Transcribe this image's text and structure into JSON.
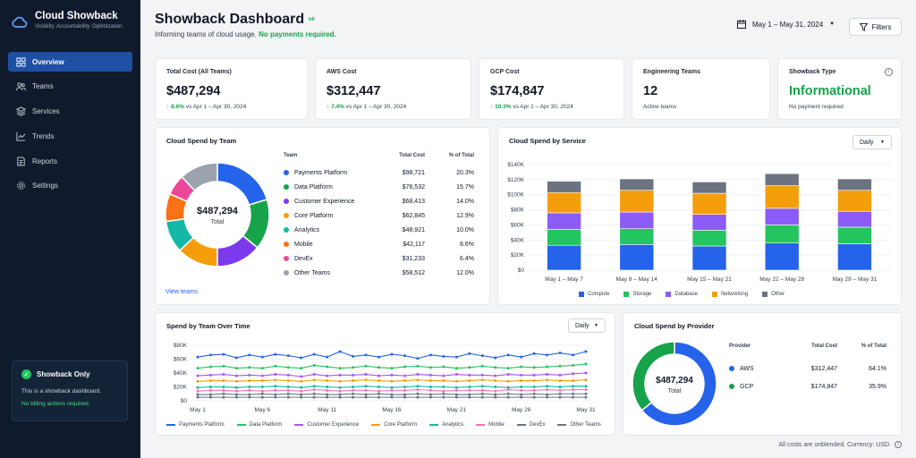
{
  "brand": {
    "title": "Cloud Showback",
    "subtitle": "Visibility. Accountability. Optimization."
  },
  "nav": [
    {
      "label": "Overview",
      "icon": "home-icon",
      "active": true
    },
    {
      "label": "Teams",
      "icon": "users-icon"
    },
    {
      "label": "Services",
      "icon": "layers-icon"
    },
    {
      "label": "Trends",
      "icon": "trend-icon"
    },
    {
      "label": "Reports",
      "icon": "report-icon"
    },
    {
      "label": "Settings",
      "icon": "gear-icon"
    }
  ],
  "promo": {
    "title": "Showback Only",
    "line1": "This is a showback dashboard.",
    "line2": "No billing actions required."
  },
  "header": {
    "title": "Showback Dashboard",
    "badge": "b9",
    "subtitle": "Informing teams of cloud usage.",
    "subtitle_strong": "No payments required.",
    "date_range": "May 1 – May 31, 2024",
    "filters": "Filters"
  },
  "kpis": [
    {
      "label": "Total Cost (All Teams)",
      "value": "$487,294",
      "change": "8.6%",
      "vs": "vs Apr 1 – Apr 30, 2024"
    },
    {
      "label": "AWS Cost",
      "value": "$312,447",
      "change": "7.4%",
      "vs": "vs Apr 1 – Apr 30, 2024"
    },
    {
      "label": "GCP Cost",
      "value": "$174,847",
      "change": "10.3%",
      "vs": "vs Apr 1 – Apr 30, 2024"
    },
    {
      "label": "Engineering Teams",
      "value": "12",
      "note": "Active teams"
    },
    {
      "label": "Showback Type",
      "value": "Informational",
      "note": "No payment required"
    }
  ],
  "team_spend": {
    "title": "Cloud Spend by Team",
    "center_value": "$487,294",
    "center_label": "Total",
    "headers": [
      "Team",
      "Total Cost",
      "% of Total"
    ],
    "rows": [
      {
        "team": "Payments Platform",
        "cost": "$98,721",
        "pct": "20.3%",
        "color": "#2563eb"
      },
      {
        "team": "Data Platform",
        "cost": "$76,532",
        "pct": "15.7%",
        "color": "#16a34a"
      },
      {
        "team": "Customer Experience",
        "cost": "$68,413",
        "pct": "14.0%",
        "color": "#7c3aed"
      },
      {
        "team": "Core Platform",
        "cost": "$62,845",
        "pct": "12.9%",
        "color": "#f59e0b"
      },
      {
        "team": "Analytics",
        "cost": "$48,921",
        "pct": "10.0%",
        "color": "#14b8a6"
      },
      {
        "team": "Mobile",
        "cost": "$42,117",
        "pct": "8.6%",
        "color": "#f97316"
      },
      {
        "team": "DevEx",
        "cost": "$31,233",
        "pct": "6.4%",
        "color": "#ec4899"
      },
      {
        "team": "Other Teams",
        "cost": "$58,512",
        "pct": "12.0%",
        "color": "#9ca3af"
      }
    ],
    "view_link": "View teams"
  },
  "chart_data": [
    {
      "type": "bar",
      "title": "Cloud Spend by Service",
      "stacked": true,
      "categories": [
        "May 1 – May 7",
        "May 8 – May 14",
        "May 15 – May 21",
        "May 22 – May 28",
        "May 29 – May 31"
      ],
      "series": [
        {
          "name": "Compute",
          "color": "#2563eb",
          "values": [
            33000,
            34000,
            32000,
            36000,
            35000
          ]
        },
        {
          "name": "Storage",
          "color": "#22c55e",
          "values": [
            21000,
            21000,
            21000,
            24000,
            22000
          ]
        },
        {
          "name": "Database",
          "color": "#8b5cf6",
          "values": [
            22000,
            22000,
            21000,
            22000,
            21000
          ]
        },
        {
          "name": "Networking",
          "color": "#f59e0b",
          "values": [
            27000,
            29000,
            28000,
            30000,
            28000
          ]
        },
        {
          "name": "Other",
          "color": "#6b7280",
          "values": [
            15000,
            15000,
            15000,
            16000,
            15000
          ]
        }
      ],
      "ylim": [
        0,
        140000
      ],
      "yticks": [
        "$0",
        "$20K",
        "$40K",
        "$60K",
        "$80K",
        "$100K",
        "$120K",
        "$140K"
      ],
      "dropdown": "Daily",
      "legend": "bottom"
    },
    {
      "type": "line",
      "title": "Spend by Team Over Time",
      "x_labels": [
        "May 1",
        "May 6",
        "May 11",
        "May 16",
        "May 21",
        "May 26",
        "May 31"
      ],
      "ylim": [
        0,
        80000
      ],
      "yticks": [
        "$0",
        "$20K",
        "$40K",
        "$60K",
        "$80K"
      ],
      "dropdown": "Daily",
      "legend": "bottom",
      "series": [
        {
          "name": "Payments Platform",
          "color": "#2563eb",
          "values": [
            63000,
            66000,
            67000,
            62000,
            66000,
            63000,
            67000,
            65000,
            62000,
            67000,
            63000,
            71000,
            64000,
            66000,
            63000,
            67000,
            65000,
            61000,
            66000,
            64000,
            63000,
            68000,
            65000,
            62000,
            66000,
            63000,
            68000,
            66000,
            69000,
            66000,
            71000
          ]
        },
        {
          "name": "Data Platform",
          "color": "#22c55e",
          "values": [
            47000,
            49000,
            50000,
            47000,
            48000,
            47000,
            50000,
            48000,
            47000,
            51000,
            49000,
            47000,
            48000,
            50000,
            48000,
            47000,
            49000,
            50000,
            48000,
            49000,
            47000,
            48000,
            50000,
            48000,
            47000,
            49000,
            48000,
            49000,
            50000,
            51000,
            53000
          ]
        },
        {
          "name": "Customer Experience",
          "color": "#a855f7",
          "values": [
            36000,
            37000,
            38000,
            36000,
            37000,
            36000,
            38000,
            37000,
            35000,
            38000,
            36000,
            37000,
            37000,
            38000,
            36000,
            37000,
            36000,
            38000,
            37000,
            36000,
            38000,
            37000,
            37000,
            36000,
            38000,
            37000,
            37000,
            38000,
            37000,
            39000,
            40000
          ]
        },
        {
          "name": "Core Platform",
          "color": "#f59e0b",
          "values": [
            28000,
            29000,
            29000,
            28000,
            29000,
            29000,
            30000,
            29000,
            28000,
            30000,
            29000,
            28000,
            29000,
            30000,
            29000,
            28000,
            29000,
            30000,
            29000,
            29000,
            28000,
            29000,
            30000,
            29000,
            28000,
            29000,
            29000,
            30000,
            29000,
            29000,
            30000
          ]
        },
        {
          "name": "Analytics",
          "color": "#14b8a6",
          "values": [
            19000,
            20000,
            20000,
            19000,
            20000,
            20000,
            21000,
            20000,
            19000,
            21000,
            20000,
            19000,
            20000,
            21000,
            20000,
            19000,
            20000,
            21000,
            20000,
            20000,
            19000,
            20000,
            21000,
            20000,
            19000,
            20000,
            20000,
            21000,
            20000,
            21000,
            21000
          ]
        },
        {
          "name": "Mobile",
          "color": "#f472b6",
          "values": [
            14000,
            15000,
            15000,
            14000,
            15000,
            14000,
            15000,
            15000,
            14000,
            16000,
            15000,
            14000,
            15000,
            15000,
            14000,
            15000,
            15000,
            16000,
            15000,
            14000,
            15000,
            15000,
            15000,
            14000,
            16000,
            15000,
            15000,
            16000,
            15000,
            16000,
            16000
          ]
        },
        {
          "name": "DevEx",
          "color": "#64748b",
          "values": [
            9000,
            9000,
            10000,
            9000,
            9000,
            10000,
            9000,
            10000,
            9000,
            10000,
            9000,
            9000,
            10000,
            9000,
            10000,
            9000,
            9000,
            10000,
            9000,
            10000,
            9000,
            9000,
            10000,
            9000,
            10000,
            9000,
            10000,
            9000,
            10000,
            10000,
            10000
          ]
        },
        {
          "name": "Other Teams",
          "color": "#6b7280",
          "values": [
            5000,
            5000,
            5000,
            5000,
            5000,
            5000,
            5000,
            5000,
            5000,
            5000,
            5000,
            5000,
            5000,
            5000,
            5000,
            5000,
            5000,
            5000,
            5000,
            5000,
            5000,
            5000,
            5000,
            5000,
            5000,
            5000,
            5000,
            5000,
            5000,
            5000,
            5000
          ]
        }
      ]
    },
    {
      "type": "pie",
      "title": "Cloud Spend by Team",
      "categories": [
        "Payments Platform",
        "Data Platform",
        "Customer Experience",
        "Core Platform",
        "Analytics",
        "Mobile",
        "DevEx",
        "Other Teams"
      ],
      "values": [
        98721,
        76532,
        68413,
        62845,
        48921,
        42117,
        31233,
        58512
      ]
    },
    {
      "type": "pie",
      "title": "Cloud Spend by Provider",
      "categories": [
        "AWS",
        "GCP"
      ],
      "values": [
        312447,
        174847
      ]
    }
  ],
  "provider": {
    "title": "Cloud Spend by Provider",
    "center_value": "$487,294",
    "center_label": "Total",
    "headers": [
      "Provider",
      "Total Cost",
      "% of Total"
    ],
    "rows": [
      {
        "name": "AWS",
        "cost": "$312,447",
        "pct": "64.1%",
        "color": "#2563eb"
      },
      {
        "name": "GCP",
        "cost": "$174,847",
        "pct": "35.9%",
        "color": "#16a34a"
      }
    ]
  },
  "footer": "All costs are unblended. Currency: USD."
}
